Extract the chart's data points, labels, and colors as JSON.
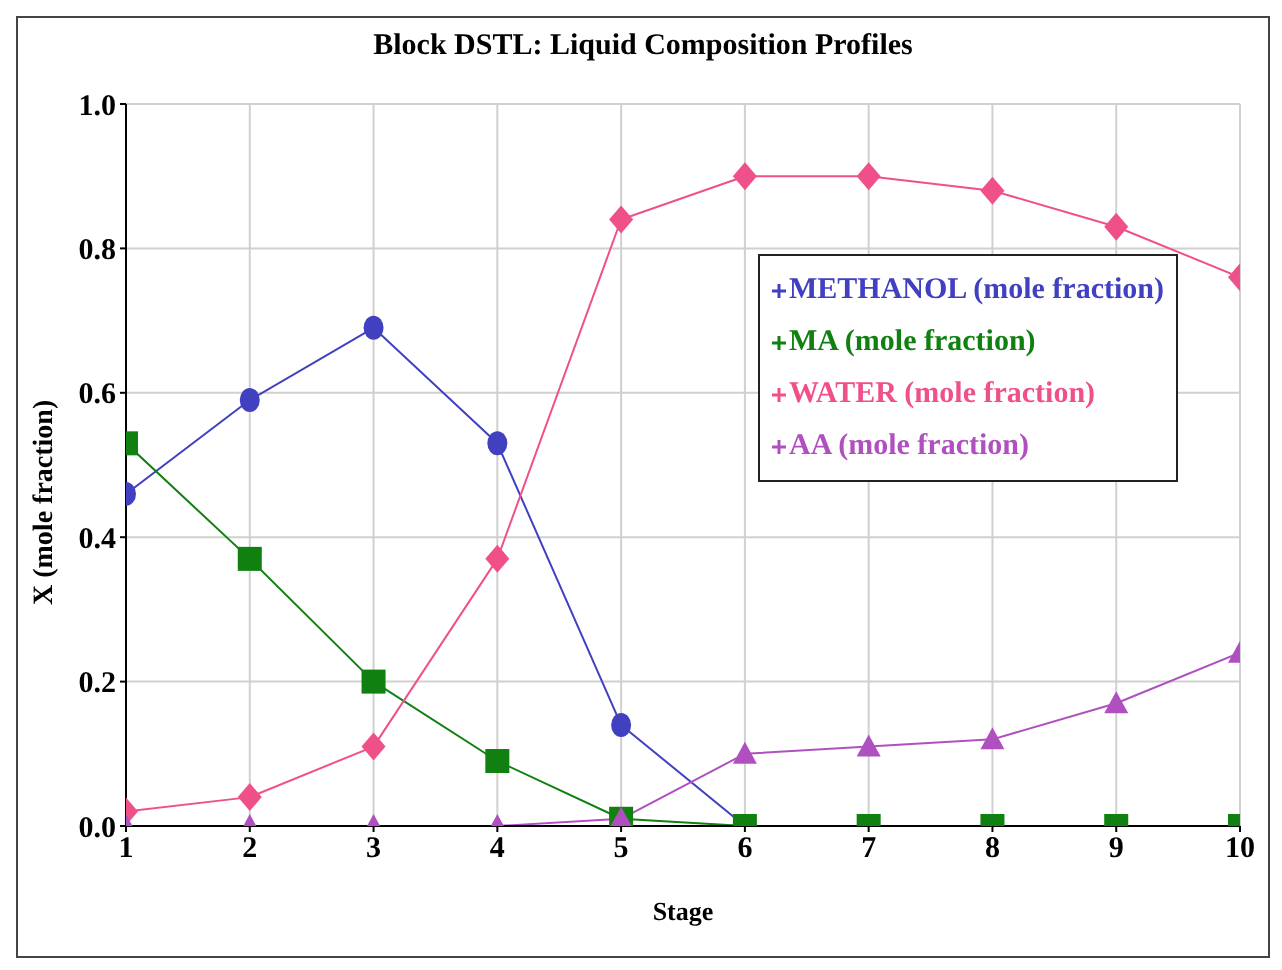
{
  "chart_data": {
    "type": "line",
    "title": "Block DSTL: Liquid Composition Profiles",
    "xlabel": "Stage",
    "ylabel": "X (mole fraction)",
    "x": [
      1,
      2,
      3,
      4,
      5,
      6,
      7,
      8,
      9,
      10
    ],
    "series": [
      {
        "name": "METHANOL (mole fraction)",
        "color": "#4040c0",
        "marker": "circle",
        "values": [
          0.46,
          0.59,
          0.69,
          0.53,
          0.14,
          0,
          null,
          null,
          null,
          null
        ]
      },
      {
        "name": "MA (mole fraction)",
        "color": "#108010",
        "marker": "square",
        "values": [
          0.53,
          0.37,
          0.2,
          0.09,
          0.01,
          0,
          0,
          0,
          0,
          0
        ]
      },
      {
        "name": "WATER (mole fraction)",
        "color": "#f0508a",
        "marker": "diamond",
        "values": [
          0.02,
          0.04,
          0.11,
          0.37,
          0.84,
          0.9,
          0.9,
          0.88,
          0.83,
          0.76
        ]
      },
      {
        "name": "AA (mole fraction)",
        "color": "#b050c0",
        "marker": "triangle",
        "values": [
          0,
          0,
          0,
          0,
          0.01,
          0.1,
          0.11,
          0.12,
          0.17,
          0.24
        ]
      }
    ],
    "xlim": [
      1,
      10
    ],
    "xticks": [
      1,
      2,
      3,
      4,
      5,
      6,
      7,
      8,
      9,
      10
    ],
    "ylim": [
      0,
      1
    ],
    "yticks": [
      {
        "value": 0,
        "label": "0.0"
      },
      {
        "value": 0.2,
        "label": "0.2"
      },
      {
        "value": 0.4,
        "label": "0.4"
      },
      {
        "value": 0.6,
        "label": "0.6"
      },
      {
        "value": 0.8,
        "label": "0.8"
      },
      {
        "value": 1,
        "label": "1.0"
      }
    ],
    "grid": true,
    "legend": "top right",
    "line_style": "solid"
  }
}
